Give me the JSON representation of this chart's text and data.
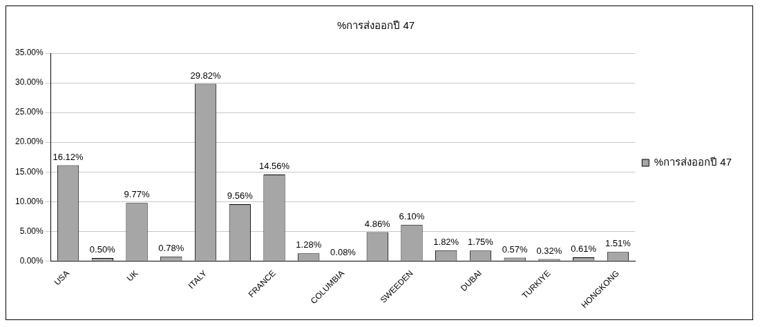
{
  "chart_data": {
    "type": "bar",
    "title": "%การส่งออกปี 47",
    "categories": [
      "USA",
      null,
      "UK",
      null,
      "ITALY",
      null,
      "FRANCE",
      null,
      "COLUMBIA",
      null,
      "SWEEDEN",
      null,
      "DUBAI",
      null,
      "TURKIYE",
      null,
      "HONGKONG"
    ],
    "series": [
      {
        "name": "%การส่งออกปี 47",
        "color": "#a6a6a6",
        "values": [
          16.12,
          0.5,
          9.77,
          0.78,
          29.82,
          9.56,
          14.56,
          1.28,
          0.08,
          4.86,
          6.1,
          1.82,
          1.75,
          0.57,
          0.32,
          0.61,
          1.51
        ],
        "value_labels": [
          "16.12%",
          "0.50%",
          "9.77%",
          "0.78%",
          "29.82%",
          "9.56%",
          "14.56%",
          "1.28%",
          "0.08%",
          "4.86%",
          "6.10%",
          "1.82%",
          "1.75%",
          "0.57%",
          "0.32%",
          "0.61%",
          "1.51%"
        ]
      }
    ],
    "ylim": [
      0,
      35
    ],
    "yticks": [
      {
        "value": 0,
        "label": "0.00%"
      },
      {
        "value": 5,
        "label": "5.00%"
      },
      {
        "value": 10,
        "label": "10.00%"
      },
      {
        "value": 15,
        "label": "15.00%"
      },
      {
        "value": 20,
        "label": "20.00%"
      },
      {
        "value": 25,
        "label": "25.00%"
      },
      {
        "value": 30,
        "label": "30.00%"
      },
      {
        "value": 35,
        "label": "35.00%"
      }
    ],
    "grid": "y",
    "legend": "right"
  }
}
